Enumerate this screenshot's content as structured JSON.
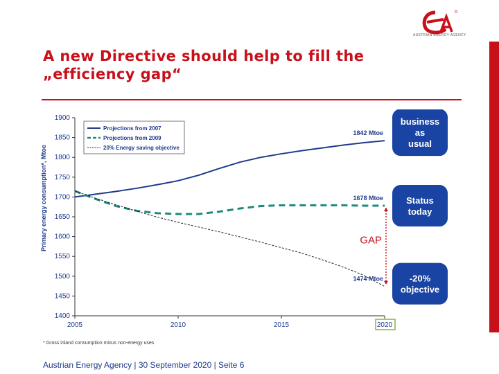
{
  "slide": {
    "title_line1": "A new Directive should help to fill the",
    "title_line2": "„efficiency gap“",
    "footer": "Austrian Energy Agency | 30 September 2020 | Seite 6",
    "logo_caption": "AUSTRIAN ENERGY AGENCY"
  },
  "chart_data": {
    "type": "line",
    "ylabel": "Primary energy consumption*, Mtoe",
    "ylim": [
      1400,
      1900
    ],
    "yticks": [
      1400,
      1450,
      1500,
      1550,
      1600,
      1650,
      1700,
      1750,
      1800,
      1850,
      1900
    ],
    "xlim": [
      2005,
      2020
    ],
    "xticks": [
      2005,
      2010,
      2015,
      2020
    ],
    "footnote": "* Gross inland consumption minus non-energy uses",
    "series": [
      {
        "name": "Projections from 2007",
        "style": "solid",
        "color": "#1f3a8a",
        "x": [
          2005,
          2006,
          2007,
          2008,
          2009,
          2010,
          2011,
          2012,
          2013,
          2014,
          2015,
          2016,
          2017,
          2018,
          2019,
          2020
        ],
        "values": [
          1700,
          1707,
          1714,
          1722,
          1731,
          1741,
          1755,
          1772,
          1788,
          1800,
          1809,
          1817,
          1824,
          1831,
          1837,
          1842
        ]
      },
      {
        "name": "Projections from 2009",
        "style": "dashed",
        "color": "#1b8a7a",
        "x": [
          2005,
          2006,
          2007,
          2008,
          2009,
          2010,
          2011,
          2012,
          2013,
          2014,
          2015,
          2016,
          2017,
          2018,
          2019,
          2020
        ],
        "values": [
          1715,
          1695,
          1677,
          1665,
          1659,
          1657,
          1657,
          1663,
          1671,
          1677,
          1679,
          1679,
          1679,
          1679,
          1678,
          1678
        ]
      },
      {
        "name": "20% Energy saving objective",
        "style": "dotted",
        "color": "#222222",
        "x": [
          2005,
          2006,
          2007,
          2008,
          2009,
          2010,
          2011,
          2012,
          2013,
          2014,
          2015,
          2016,
          2017,
          2018,
          2019,
          2020
        ],
        "values": [
          1715,
          1697,
          1680,
          1664,
          1649,
          1636,
          1624,
          1612,
          1599,
          1586,
          1572,
          1558,
          1541,
          1523,
          1502,
          1474
        ]
      }
    ],
    "annotations": [
      {
        "text": "1842 Mtoe",
        "y": 1842
      },
      {
        "text": "1678 Mtoe",
        "y": 1678
      },
      {
        "text": "1474 Mtoe",
        "y": 1474
      },
      {
        "text": "GAP",
        "color": "#c8101b"
      }
    ],
    "badges": [
      {
        "lines": [
          "business",
          "as",
          "usual"
        ],
        "y": 1842
      },
      {
        "lines": [
          "Status",
          "today"
        ],
        "y": 1678
      },
      {
        "lines": [
          "-20%",
          "objective"
        ],
        "y": 1474
      }
    ],
    "badge_color": "#1a44a3",
    "highlight_tick": 2020
  }
}
